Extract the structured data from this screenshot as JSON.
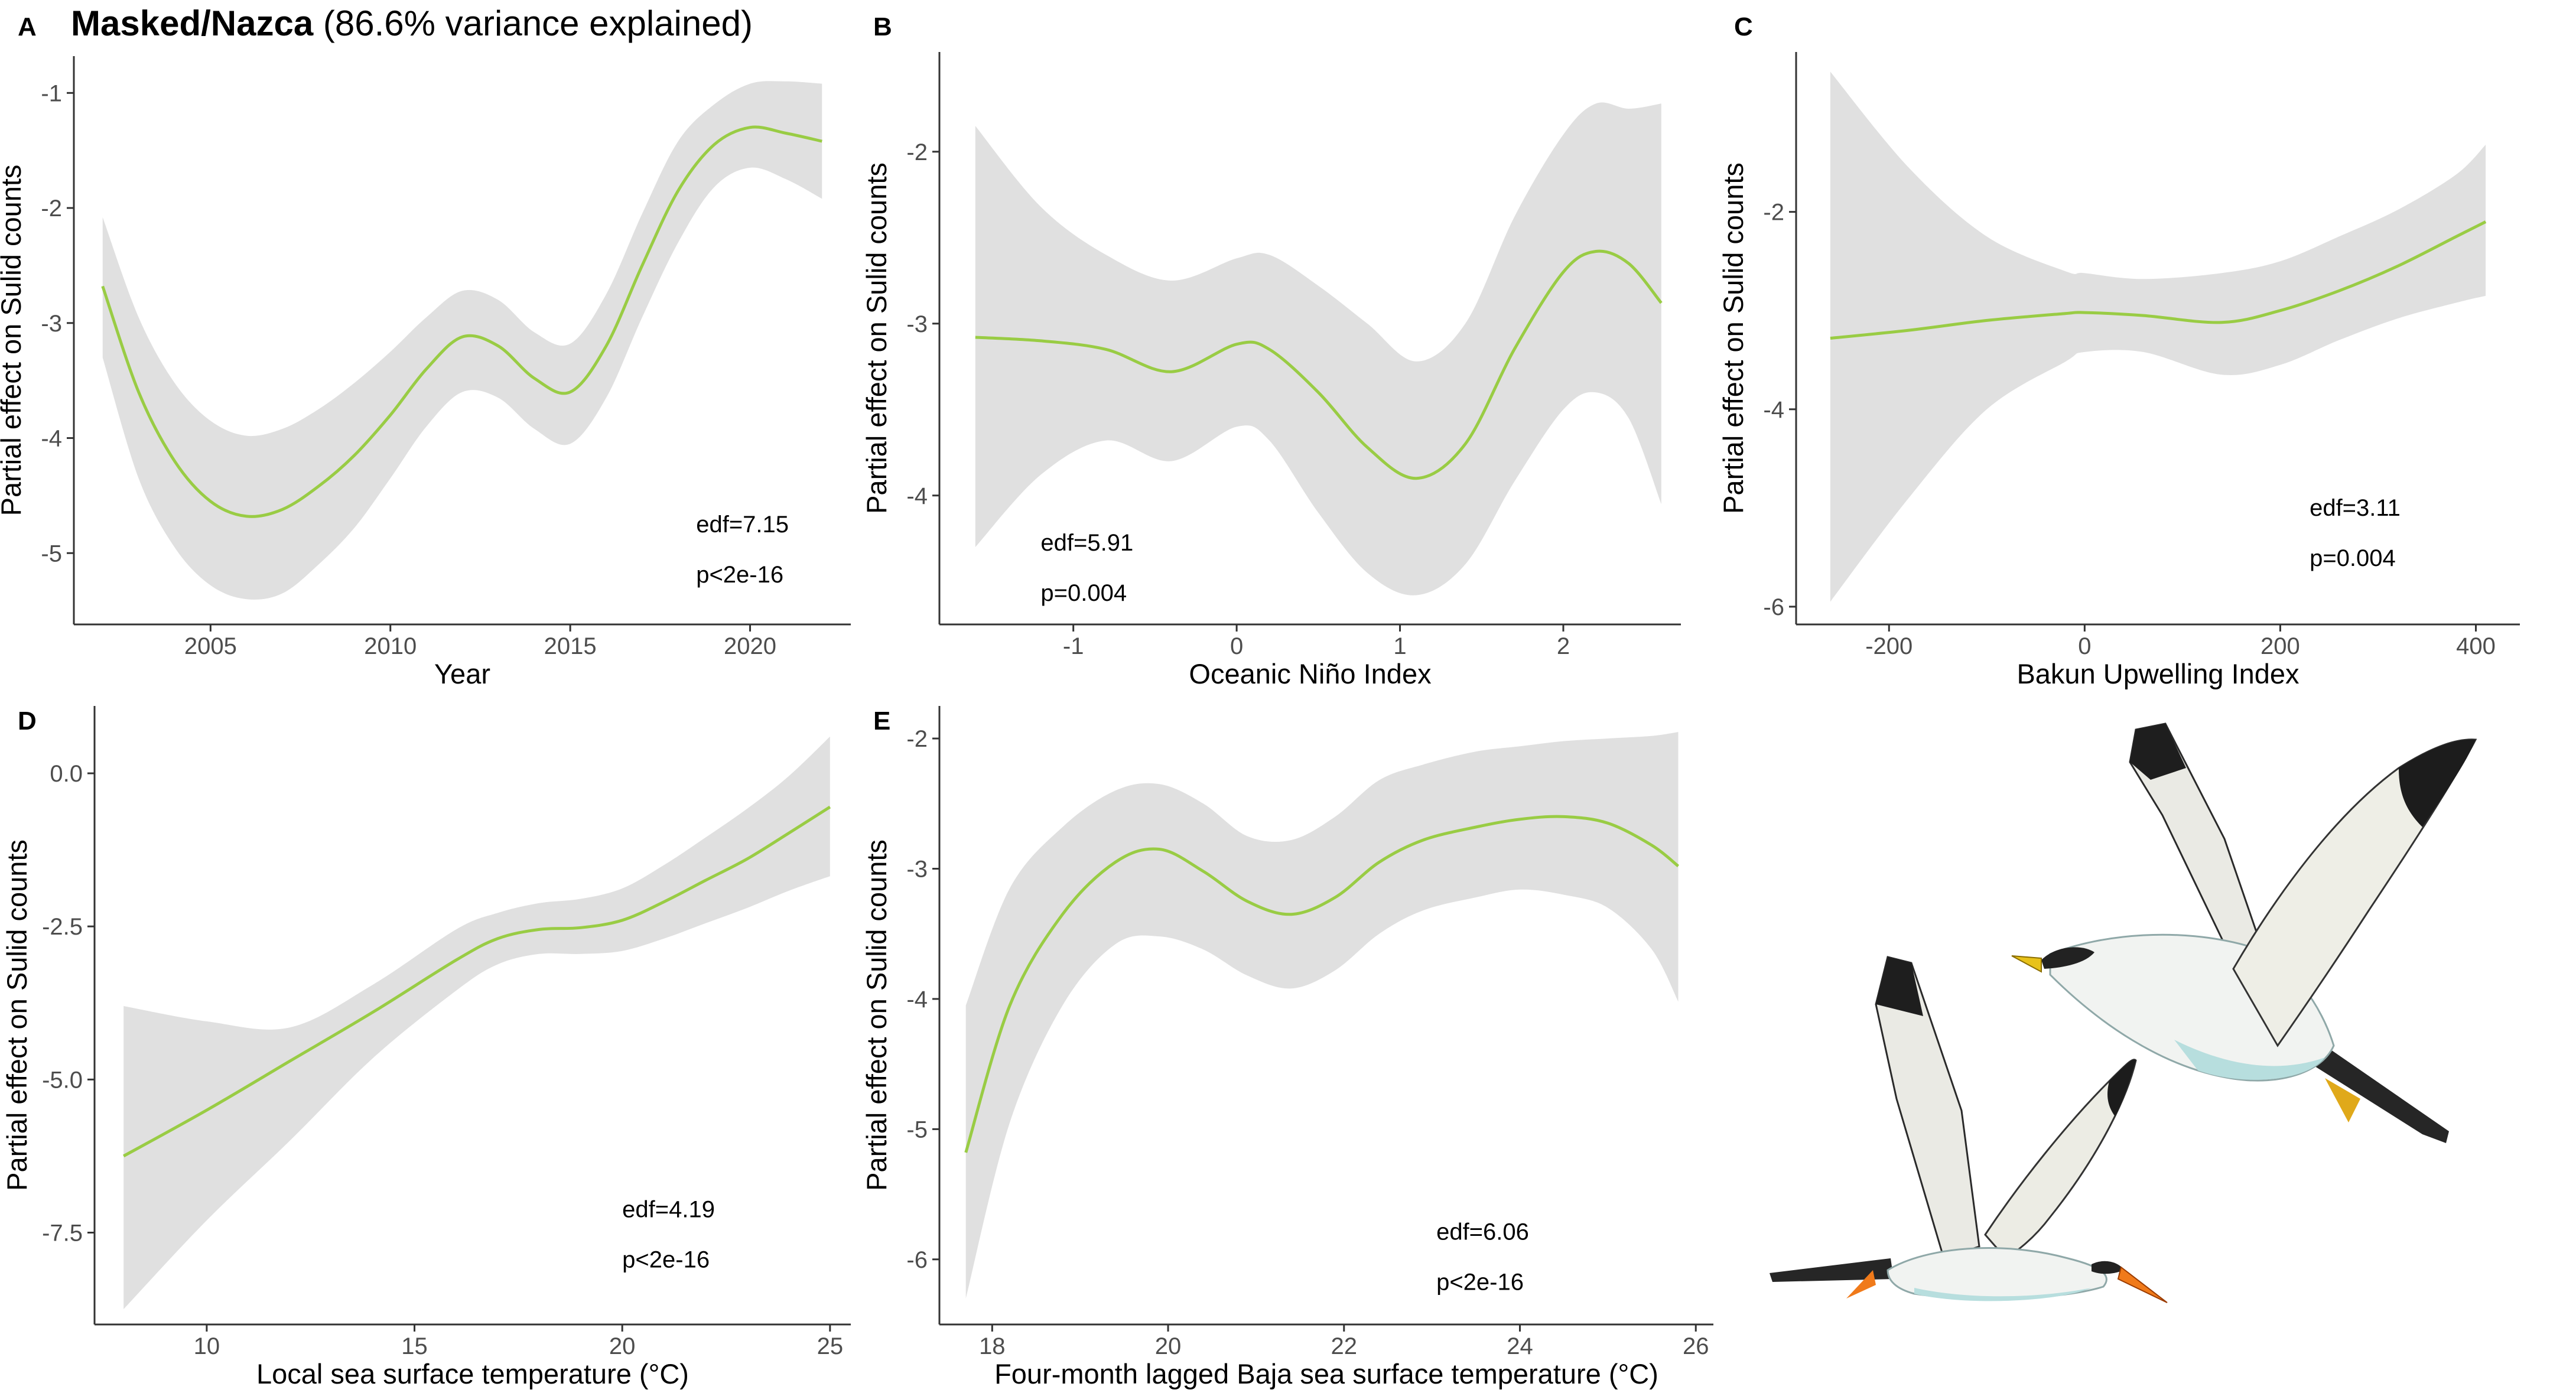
{
  "figure": {
    "title_bold": "Masked/Nazca",
    "title_rest": " (86.6% variance explained)",
    "colors": {
      "band": "#e0e0e0",
      "line": "#99cc44",
      "axis": "#333333",
      "text": "#000000"
    },
    "illustration": "two masked/nazca booby birds in flight"
  },
  "chart_data": [
    {
      "id": "A",
      "letter": "A",
      "type": "line",
      "xlabel": "Year",
      "ylabel": "Partial effect on Sulid counts",
      "xlim": [
        2001.2,
        2022.8
      ],
      "ylim": [
        -5.62,
        -0.68
      ],
      "xticks": [
        2005,
        2010,
        2015,
        2020
      ],
      "xtick_labels": [
        "2005",
        "2010",
        "2015",
        "2020"
      ],
      "yticks": [
        -5,
        -4,
        -3,
        -2,
        -1
      ],
      "ytick_labels": [
        "-5",
        "-4",
        "-3",
        "-2",
        "-1"
      ],
      "edf": "edf=7.15",
      "p": "p<2e-16",
      "annot_at": [
        2018.5,
        -4.82
      ],
      "x": [
        2002,
        2003,
        2004,
        2005,
        2006,
        2007,
        2008,
        2009,
        2010,
        2011,
        2012,
        2013,
        2014,
        2015,
        2016,
        2017,
        2018,
        2019,
        2020,
        2021,
        2022
      ],
      "fit": [
        -2.68,
        -3.6,
        -4.2,
        -4.55,
        -4.68,
        -4.62,
        -4.42,
        -4.15,
        -3.8,
        -3.4,
        -3.12,
        -3.2,
        -3.48,
        -3.6,
        -3.2,
        -2.5,
        -1.85,
        -1.45,
        -1.3,
        -1.35,
        -1.42
      ],
      "lower": [
        -3.3,
        -4.35,
        -4.95,
        -5.28,
        -5.4,
        -5.35,
        -5.1,
        -4.78,
        -4.35,
        -3.9,
        -3.6,
        -3.65,
        -3.92,
        -4.05,
        -3.65,
        -2.95,
        -2.3,
        -1.82,
        -1.65,
        -1.75,
        -1.92
      ],
      "upper": [
        -2.08,
        -2.95,
        -3.52,
        -3.85,
        -3.98,
        -3.92,
        -3.75,
        -3.52,
        -3.25,
        -2.95,
        -2.72,
        -2.8,
        -3.08,
        -3.18,
        -2.75,
        -2.05,
        -1.42,
        -1.1,
        -0.92,
        -0.9,
        -0.92
      ]
    },
    {
      "id": "B",
      "letter": "B",
      "type": "line",
      "xlabel": "Oceanic Niño Index",
      "ylabel": "Partial effect on Sulid counts",
      "xlim": [
        -1.82,
        2.72
      ],
      "ylim": [
        -4.75,
        -1.42
      ],
      "xticks": [
        -1,
        0,
        1,
        2
      ],
      "xtick_labels": [
        "-1",
        "0",
        "1",
        "2"
      ],
      "yticks": [
        -4,
        -3,
        -2
      ],
      "ytick_labels": [
        "-4",
        "-3",
        "-2"
      ],
      "edf": "edf=5.91",
      "p": "p=0.004",
      "annot_at": [
        -1.2,
        -4.32
      ],
      "x": [
        -1.6,
        -1.2,
        -0.8,
        -0.4,
        0.0,
        0.2,
        0.5,
        0.8,
        1.1,
        1.4,
        1.7,
        2.0,
        2.2,
        2.4,
        2.6
      ],
      "fit": [
        -3.08,
        -3.1,
        -3.15,
        -3.28,
        -3.12,
        -3.15,
        -3.4,
        -3.72,
        -3.9,
        -3.7,
        -3.15,
        -2.7,
        -2.58,
        -2.65,
        -2.88
      ],
      "lower": [
        -4.3,
        -3.88,
        -3.68,
        -3.8,
        -3.6,
        -3.68,
        -4.1,
        -4.45,
        -4.58,
        -4.4,
        -3.92,
        -3.5,
        -3.4,
        -3.55,
        -4.05
      ],
      "upper": [
        -1.85,
        -2.32,
        -2.6,
        -2.75,
        -2.62,
        -2.6,
        -2.78,
        -3.0,
        -3.22,
        -3.0,
        -2.38,
        -1.9,
        -1.72,
        -1.75,
        -1.72
      ]
    },
    {
      "id": "C",
      "letter": "C",
      "type": "line",
      "xlabel": "Bakun Upwelling Index",
      "ylabel": "Partial effect on Sulid counts",
      "xlim": [
        -295,
        445
      ],
      "ylim": [
        -6.18,
        -0.38
      ],
      "xticks": [
        -200,
        0,
        200,
        400
      ],
      "xtick_labels": [
        "-200",
        "0",
        "200",
        "400"
      ],
      "yticks": [
        -6,
        -4,
        -2
      ],
      "ytick_labels": [
        "-6",
        "-4",
        "-2"
      ],
      "edf": "edf=3.11",
      "p": "p=0.004",
      "annot_at": [
        230,
        -5.08
      ],
      "x": [
        -260,
        -180,
        -100,
        -20,
        0,
        60,
        140,
        200,
        260,
        320,
        380,
        410
      ],
      "fit": [
        -3.28,
        -3.2,
        -3.1,
        -3.03,
        -3.02,
        -3.05,
        -3.12,
        -3.0,
        -2.8,
        -2.55,
        -2.25,
        -2.1
      ],
      "lower": [
        -5.95,
        -4.9,
        -4.0,
        -3.52,
        -3.42,
        -3.42,
        -3.65,
        -3.55,
        -3.3,
        -3.08,
        -2.92,
        -2.85
      ],
      "upper": [
        -0.58,
        -1.55,
        -2.25,
        -2.6,
        -2.62,
        -2.68,
        -2.62,
        -2.5,
        -2.25,
        -1.98,
        -1.62,
        -1.32
      ]
    },
    {
      "id": "D",
      "letter": "D",
      "type": "line",
      "xlabel": "Local sea surface temperature (°C)",
      "ylabel": "Partial effect on Sulid counts",
      "xlim": [
        7.3,
        25.5
      ],
      "ylim": [
        -9.0,
        1.1
      ],
      "xticks": [
        10,
        15,
        20,
        25
      ],
      "xtick_labels": [
        "10",
        "15",
        "20",
        "25"
      ],
      "yticks": [
        -7.5,
        -5.0,
        -2.5,
        0.0
      ],
      "ytick_labels": [
        "-7.5",
        "-5.0",
        "-2.5",
        "0.0"
      ],
      "edf": "edf=4.19",
      "p": "p<2e-16",
      "annot_at": [
        20,
        -7.25
      ],
      "x": [
        8,
        10,
        12,
        14,
        16,
        17,
        18,
        19,
        20,
        21,
        22,
        23,
        24,
        25
      ],
      "fit": [
        -6.25,
        -5.5,
        -4.7,
        -3.9,
        -3.05,
        -2.7,
        -2.55,
        -2.52,
        -2.4,
        -2.1,
        -1.75,
        -1.4,
        -0.98,
        -0.55
      ],
      "lower": [
        -8.75,
        -7.3,
        -6.0,
        -4.65,
        -3.55,
        -3.12,
        -2.95,
        -2.95,
        -2.9,
        -2.7,
        -2.45,
        -2.2,
        -1.92,
        -1.68
      ],
      "upper": [
        -3.8,
        -4.05,
        -4.15,
        -3.45,
        -2.55,
        -2.28,
        -2.12,
        -2.05,
        -1.88,
        -1.5,
        -1.05,
        -0.58,
        -0.05,
        0.6
      ]
    },
    {
      "id": "E",
      "letter": "E",
      "type": "line",
      "xlabel": "Four-month lagged Baja sea surface temperature (°C)",
      "ylabel": "Partial effect on Sulid counts",
      "xlim": [
        17.4,
        26.2
      ],
      "ylim": [
        -6.5,
        -1.75
      ],
      "xticks": [
        18,
        20,
        22,
        24,
        26
      ],
      "xtick_labels": [
        "18",
        "20",
        "22",
        "24",
        "26"
      ],
      "yticks": [
        -6,
        -5,
        -4,
        -3,
        -2
      ],
      "ytick_labels": [
        "-6",
        "-5",
        "-4",
        "-3",
        "-2"
      ],
      "edf": "edf=6.06",
      "p": "p<2e-16",
      "annot_at": [
        23.05,
        -5.85
      ],
      "x": [
        17.7,
        18.2,
        18.8,
        19.4,
        19.9,
        20.4,
        20.9,
        21.4,
        21.9,
        22.4,
        22.9,
        23.5,
        24.0,
        24.5,
        25.0,
        25.5,
        25.8
      ],
      "fit": [
        -5.18,
        -4.05,
        -3.35,
        -2.95,
        -2.85,
        -3.02,
        -3.25,
        -3.35,
        -3.22,
        -2.95,
        -2.78,
        -2.68,
        -2.62,
        -2.6,
        -2.65,
        -2.82,
        -2.98
      ],
      "lower": [
        -6.3,
        -4.95,
        -4.05,
        -3.58,
        -3.52,
        -3.62,
        -3.82,
        -3.92,
        -3.78,
        -3.5,
        -3.32,
        -3.22,
        -3.16,
        -3.2,
        -3.3,
        -3.62,
        -4.02
      ],
      "upper": [
        -4.05,
        -3.15,
        -2.68,
        -2.4,
        -2.35,
        -2.5,
        -2.75,
        -2.78,
        -2.6,
        -2.32,
        -2.2,
        -2.1,
        -2.06,
        -2.02,
        -2.0,
        -1.98,
        -1.95
      ]
    }
  ]
}
